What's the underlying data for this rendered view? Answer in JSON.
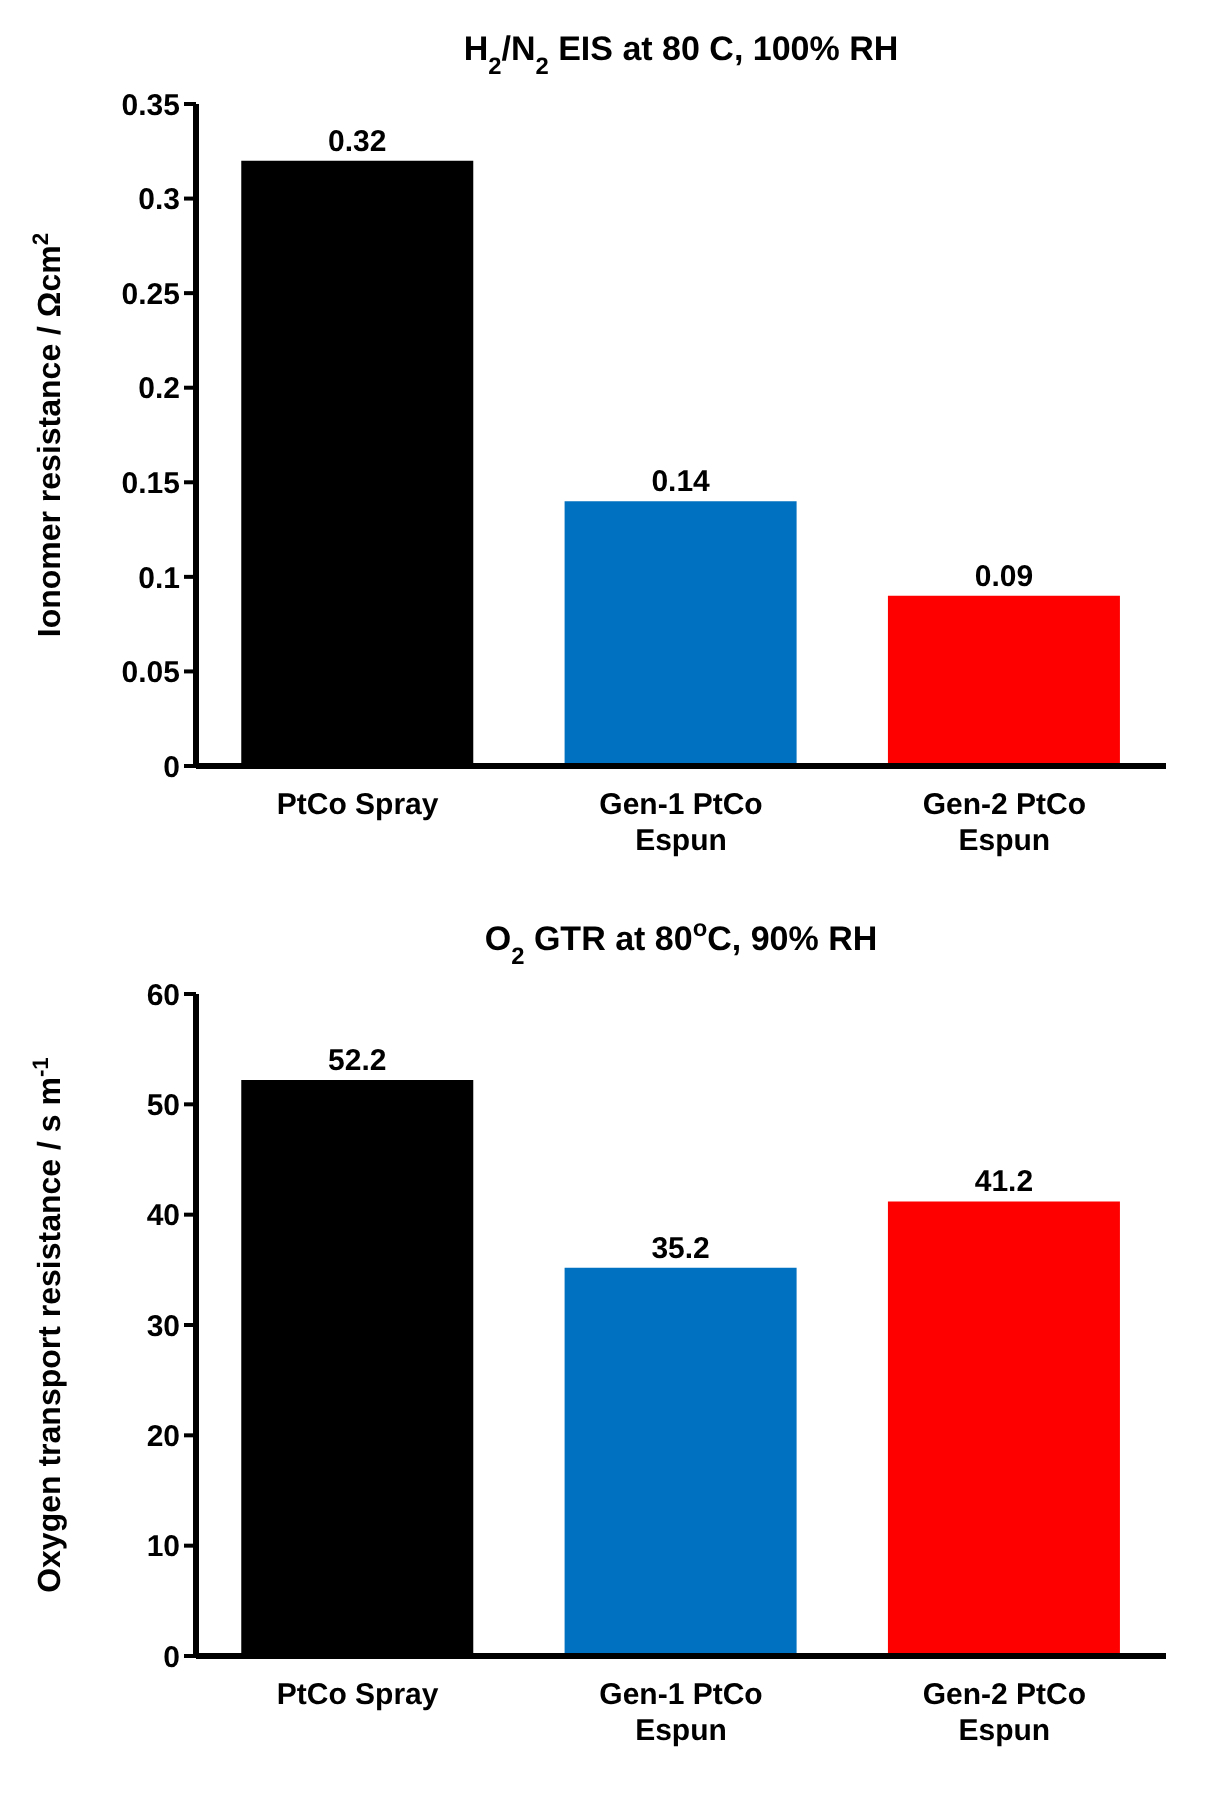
{
  "chart_data": [
    {
      "type": "bar",
      "title": "H$_{2}$/N$_{2}$ EIS at 80 C, 100% RH",
      "ylabel": "Ionomer resistance / Ωcm$^{2}$",
      "categories": [
        "PtCo Spray",
        "Gen-1 PtCo Espun",
        "Gen-2 PtCo Espun"
      ],
      "values": [
        0.32,
        0.14,
        0.09
      ],
      "colors": [
        "#000000",
        "#0070c0",
        "#ff0000"
      ],
      "ylim": [
        0,
        0.35
      ],
      "yticks": [
        0,
        0.05,
        0.1,
        0.15,
        0.2,
        0.25,
        0.3,
        0.35
      ],
      "data_labels": true,
      "grid": false,
      "legend": false
    },
    {
      "type": "bar",
      "title": "O$_{2}$ GTR at 80$^{o}$C, 90% RH",
      "ylabel": "Oxygen transport resistance / s m$^{-1}$",
      "categories": [
        "PtCo Spray",
        "Gen-1 PtCo Espun",
        "Gen-2 PtCo Espun"
      ],
      "values": [
        52.2,
        35.2,
        41.2
      ],
      "colors": [
        "#000000",
        "#0070c0",
        "#ff0000"
      ],
      "ylim": [
        0,
        60
      ],
      "yticks": [
        0,
        10,
        20,
        30,
        40,
        50,
        60
      ],
      "data_labels": true,
      "grid": false,
      "legend": false
    }
  ]
}
